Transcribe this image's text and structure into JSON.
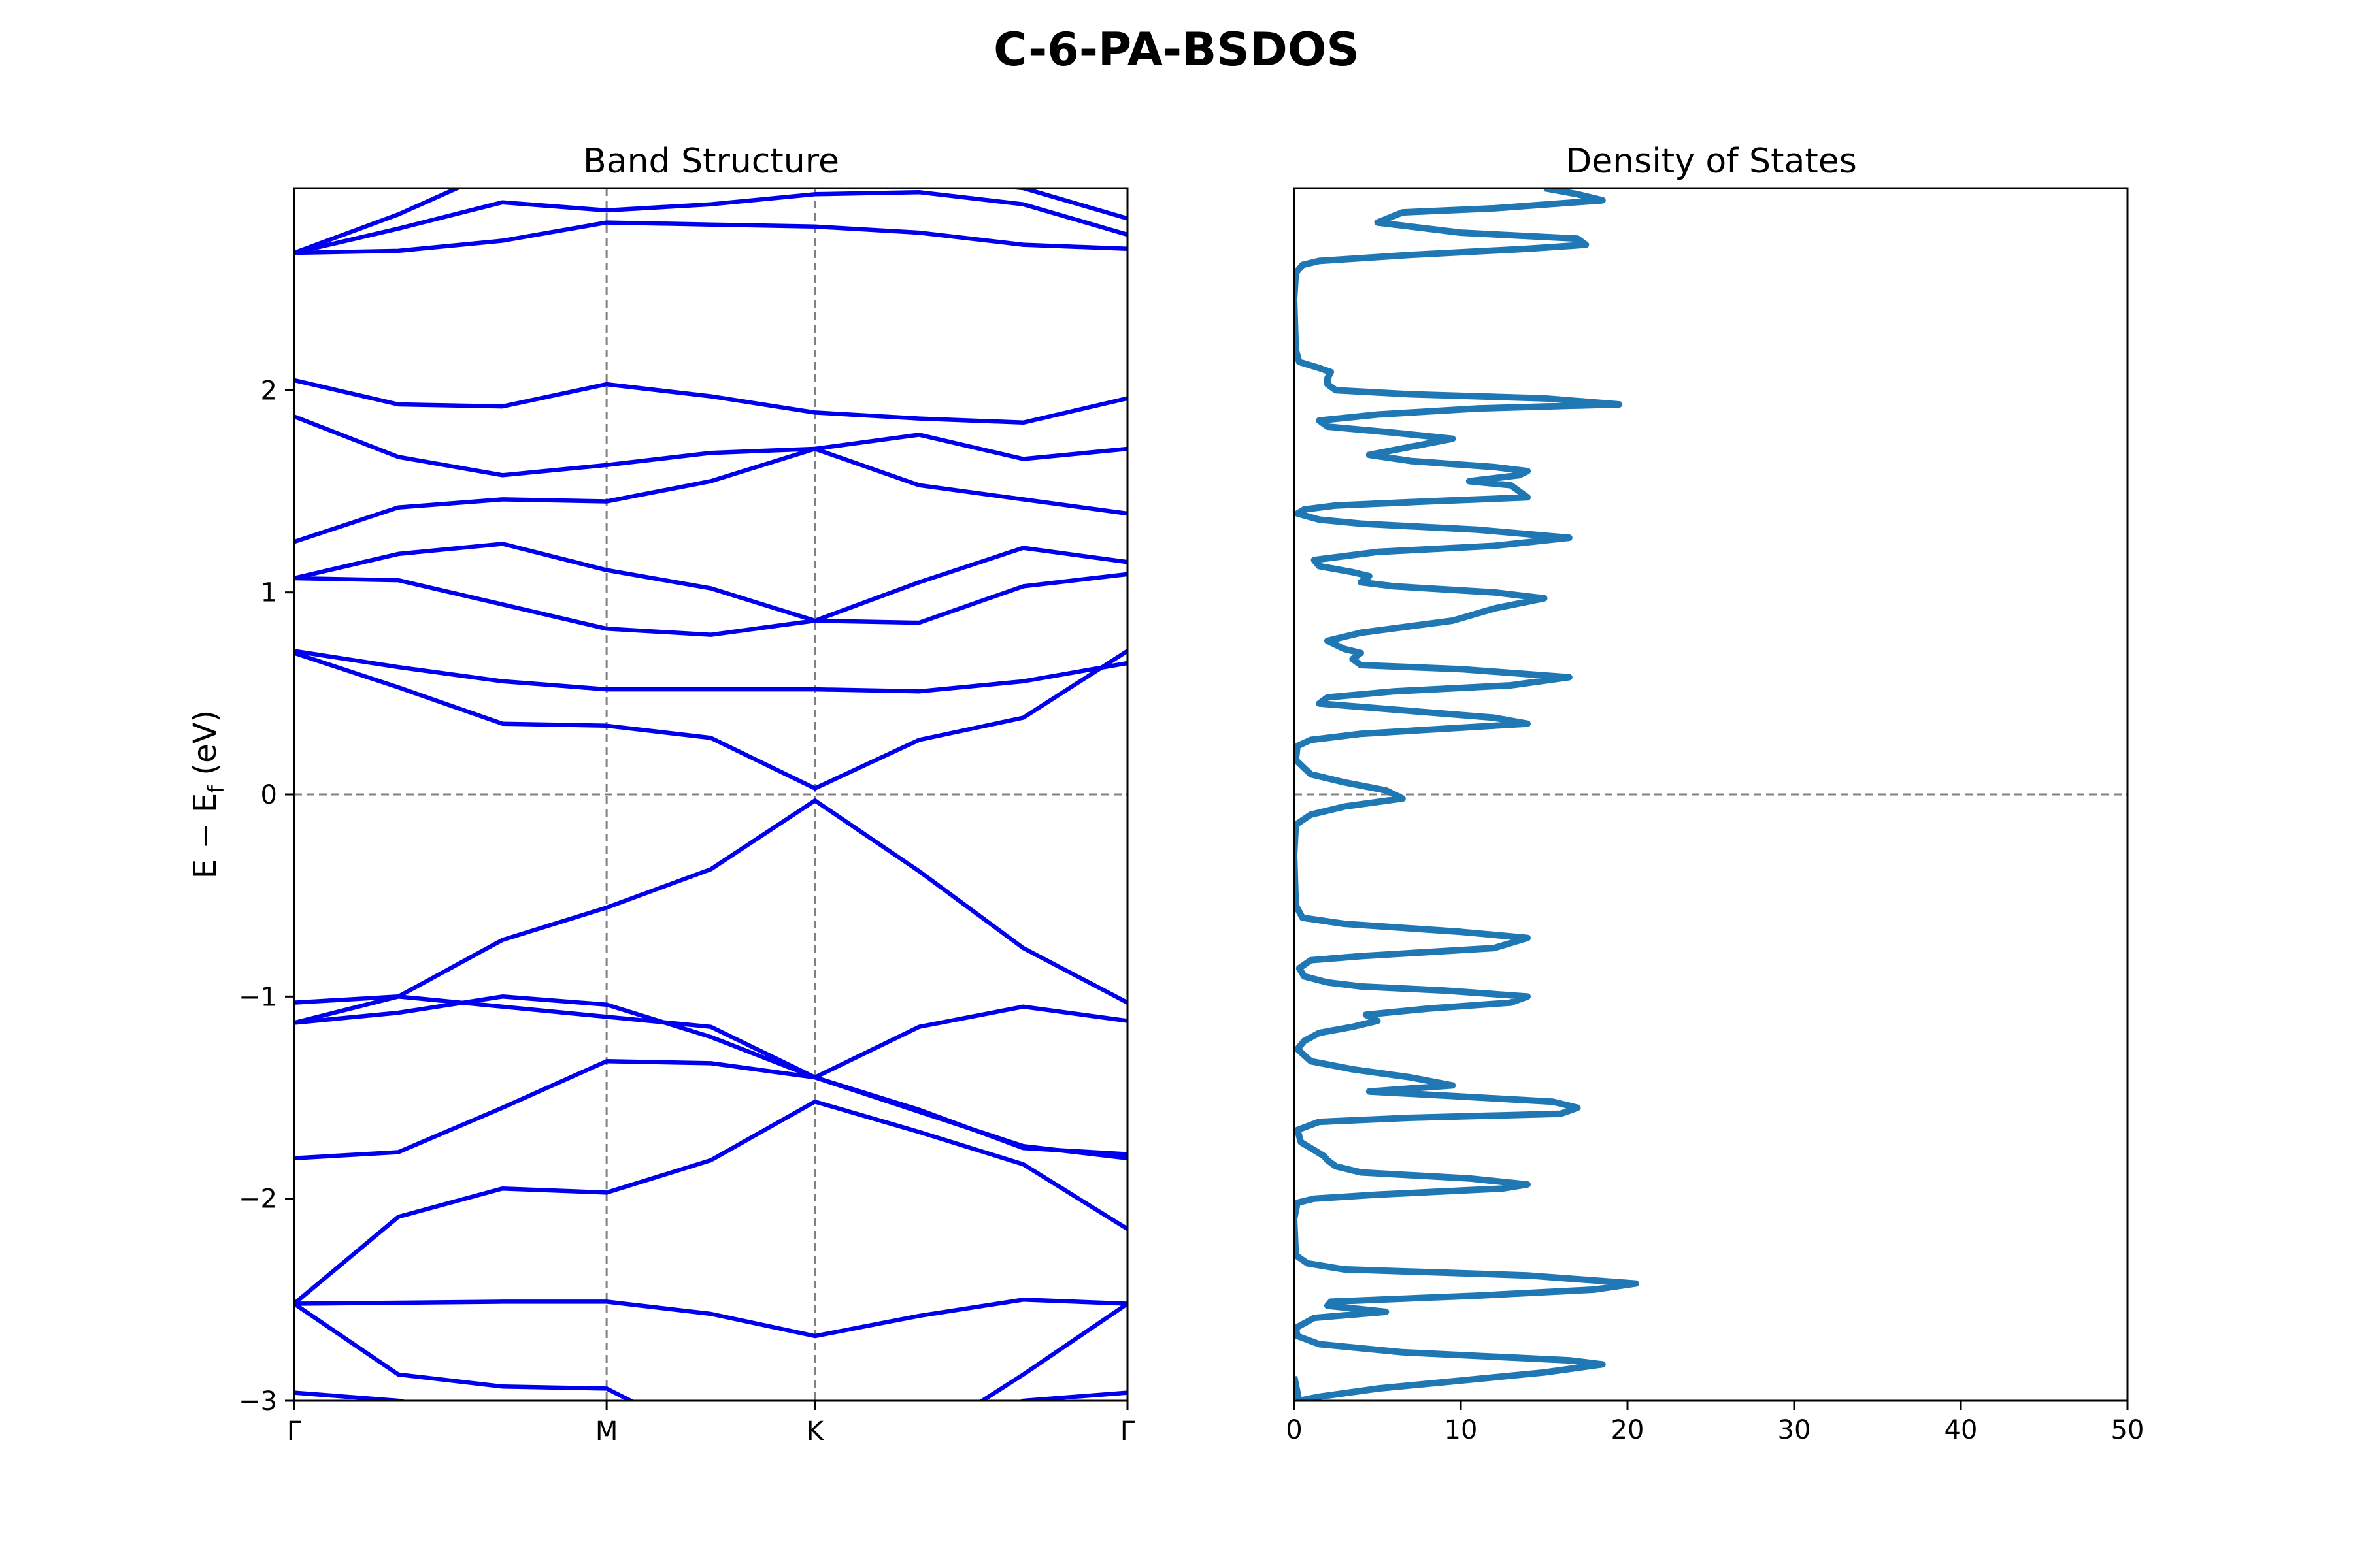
{
  "figure": {
    "title": "C-6-PA-BSDOS"
  },
  "chart_data": [
    {
      "type": "line",
      "title": "Band Structure",
      "xlabel": "",
      "ylabel": "E − E_f (eV)",
      "ylabel_parts": {
        "main": "E − E",
        "sub": "f",
        "unit": " (eV)"
      },
      "ylim": [
        -3,
        3
      ],
      "yticks": [
        -3,
        -2,
        -1,
        0,
        1,
        2
      ],
      "ytick_labels": [
        "−3",
        "−2",
        "−1",
        "0",
        "1",
        "2"
      ],
      "kpath_labels": [
        "Γ",
        "M",
        "K",
        "Γ"
      ],
      "kpath_positions": [
        0,
        3,
        5,
        8
      ],
      "fermi_level": 0,
      "line_color": "#0000ee",
      "guide_color": "#808080",
      "k": [
        0,
        1,
        2,
        3,
        4,
        5,
        6,
        7,
        8
      ],
      "series": [
        {
          "values": [
            -3.05,
            -3.25,
            -3.35,
            -3.3,
            -3.45,
            -3.6,
            -3.45,
            -3.2,
            -3.05
          ]
        },
        {
          "values": [
            -2.96,
            -3.0,
            -3.1,
            -3.2,
            -3.3,
            -3.4,
            -3.3,
            -3.0,
            -2.96
          ]
        },
        {
          "values": [
            -2.52,
            -2.87,
            -2.93,
            -2.94,
            -3.2,
            -3.3,
            -3.2,
            -2.87,
            -2.52
          ]
        },
        {
          "values": [
            -2.52,
            -2.515,
            -2.51,
            -2.51,
            -2.57,
            -2.68,
            -2.58,
            -2.5,
            -2.52
          ]
        },
        {
          "values": [
            -2.52,
            -2.09,
            -1.95,
            -1.97,
            -1.81,
            -1.52,
            -1.67,
            -1.83,
            -2.15
          ]
        },
        {
          "values": [
            -1.8,
            -1.77,
            -1.55,
            -1.32,
            -1.33,
            -1.4,
            -1.57,
            -1.74,
            -1.8
          ]
        },
        {
          "values": [
            -1.13,
            -1.08,
            -1.0,
            -1.04,
            -1.2,
            -1.4,
            -1.56,
            -1.75,
            -1.78
          ]
        },
        {
          "values": [
            -1.13,
            -1.0,
            -0.72,
            -0.56,
            -0.37,
            -0.03,
            -0.38,
            -0.76,
            -1.03
          ]
        },
        {
          "values": [
            -1.03,
            -1.0,
            -1.05,
            -1.1,
            -1.15,
            -1.4,
            -1.15,
            -1.05,
            -1.12
          ]
        },
        {
          "values": [
            0.7,
            0.53,
            0.35,
            0.34,
            0.28,
            0.03,
            0.27,
            0.38,
            0.71
          ]
        },
        {
          "values": [
            0.71,
            0.63,
            0.56,
            0.52,
            0.52,
            0.52,
            0.51,
            0.56,
            0.65
          ]
        },
        {
          "values": [
            1.07,
            1.06,
            0.94,
            0.82,
            0.79,
            0.86,
            0.85,
            1.03,
            1.09
          ]
        },
        {
          "values": [
            1.07,
            1.19,
            1.24,
            1.11,
            1.02,
            0.86,
            1.05,
            1.22,
            1.15
          ]
        },
        {
          "values": [
            1.25,
            1.42,
            1.46,
            1.45,
            1.55,
            1.71,
            1.53,
            1.46,
            1.39
          ]
        },
        {
          "values": [
            1.87,
            1.67,
            1.58,
            1.63,
            1.69,
            1.71,
            1.78,
            1.66,
            1.71
          ]
        },
        {
          "values": [
            2.05,
            1.93,
            1.92,
            2.03,
            1.97,
            1.89,
            1.86,
            1.84,
            1.96
          ]
        },
        {
          "values": [
            2.68,
            2.69,
            2.74,
            2.83,
            2.82,
            2.81,
            2.78,
            2.72,
            2.7
          ]
        },
        {
          "values": [
            2.68,
            2.8,
            2.93,
            2.89,
            2.92,
            2.97,
            2.98,
            2.92,
            2.77
          ]
        },
        {
          "values": [
            2.68,
            2.87,
            3.1,
            3.2,
            3.15,
            3.1,
            3.05,
            3.0,
            2.85
          ]
        }
      ]
    },
    {
      "type": "line",
      "title": "Density of States",
      "xlabel": "",
      "ylabel": "",
      "xlim": [
        0,
        50
      ],
      "xticks": [
        0,
        10,
        20,
        30,
        40,
        50
      ],
      "ylim": [
        -3,
        3
      ],
      "fermi_level": 0,
      "line_color": "#1f77b4",
      "guide_color": "#808080",
      "curve": [
        [
          0,
          -2.88
        ],
        [
          0.3,
          -3.0
        ],
        [
          1.5,
          -2.98
        ],
        [
          5,
          -2.94
        ],
        [
          10,
          -2.9
        ],
        [
          15,
          -2.86
        ],
        [
          18.5,
          -2.82
        ],
        [
          16.5,
          -2.8
        ],
        [
          6.5,
          -2.76
        ],
        [
          1.5,
          -2.72
        ],
        [
          0.2,
          -2.68
        ],
        [
          0.1,
          -2.64
        ],
        [
          1.2,
          -2.59
        ],
        [
          5.5,
          -2.56
        ],
        [
          2,
          -2.53
        ],
        [
          2.2,
          -2.51
        ],
        [
          11,
          -2.48
        ],
        [
          18,
          -2.45
        ],
        [
          20.5,
          -2.42
        ],
        [
          14,
          -2.38
        ],
        [
          3,
          -2.35
        ],
        [
          0.8,
          -2.32
        ],
        [
          0.1,
          -2.28
        ],
        [
          0,
          -2.1
        ],
        [
          0.2,
          -2.02
        ],
        [
          1.2,
          -2.0
        ],
        [
          5,
          -1.98
        ],
        [
          12.5,
          -1.95
        ],
        [
          14,
          -1.93
        ],
        [
          10.5,
          -1.9
        ],
        [
          4,
          -1.87
        ],
        [
          2.5,
          -1.84
        ],
        [
          2,
          -1.81
        ],
        [
          1.8,
          -1.79
        ],
        [
          1.2,
          -1.76
        ],
        [
          0.4,
          -1.72
        ],
        [
          0.2,
          -1.66
        ],
        [
          1.5,
          -1.62
        ],
        [
          7,
          -1.6
        ],
        [
          16,
          -1.58
        ],
        [
          17,
          -1.55
        ],
        [
          15.5,
          -1.52
        ],
        [
          9,
          -1.49
        ],
        [
          4.5,
          -1.47
        ],
        [
          9.5,
          -1.44
        ],
        [
          7,
          -1.4
        ],
        [
          3.5,
          -1.36
        ],
        [
          1,
          -1.32
        ],
        [
          0.2,
          -1.26
        ],
        [
          0.6,
          -1.22
        ],
        [
          1.5,
          -1.18
        ],
        [
          3.5,
          -1.15
        ],
        [
          5,
          -1.12
        ],
        [
          4.3,
          -1.09
        ],
        [
          8,
          -1.06
        ],
        [
          13,
          -1.03
        ],
        [
          14,
          -1.0
        ],
        [
          9,
          -0.97
        ],
        [
          4,
          -0.95
        ],
        [
          2,
          -0.93
        ],
        [
          0.6,
          -0.9
        ],
        [
          0.3,
          -0.86
        ],
        [
          1,
          -0.82
        ],
        [
          4,
          -0.8
        ],
        [
          12,
          -0.76
        ],
        [
          14,
          -0.71
        ],
        [
          10,
          -0.68
        ],
        [
          3,
          -0.64
        ],
        [
          0.5,
          -0.61
        ],
        [
          0.1,
          -0.55
        ],
        [
          0,
          -0.3
        ],
        [
          0.1,
          -0.15
        ],
        [
          1,
          -0.1
        ],
        [
          3,
          -0.06
        ],
        [
          6.5,
          -0.02
        ],
        [
          5.5,
          0.02
        ],
        [
          3,
          0.06
        ],
        [
          1,
          0.1
        ],
        [
          0.1,
          0.17
        ],
        [
          0.2,
          0.24
        ],
        [
          1,
          0.27
        ],
        [
          4,
          0.3
        ],
        [
          10,
          0.33
        ],
        [
          14,
          0.35
        ],
        [
          12,
          0.38
        ],
        [
          6,
          0.42
        ],
        [
          1.5,
          0.45
        ],
        [
          2,
          0.48
        ],
        [
          6,
          0.51
        ],
        [
          13,
          0.54
        ],
        [
          16.5,
          0.58
        ],
        [
          10,
          0.62
        ],
        [
          4,
          0.64
        ],
        [
          3.5,
          0.67
        ],
        [
          4,
          0.7
        ],
        [
          3,
          0.72
        ],
        [
          2,
          0.76
        ],
        [
          4,
          0.8
        ],
        [
          9.5,
          0.86
        ],
        [
          12,
          0.92
        ],
        [
          15,
          0.97
        ],
        [
          12,
          1.0
        ],
        [
          6,
          1.03
        ],
        [
          4,
          1.05
        ],
        [
          4.5,
          1.08
        ],
        [
          3.5,
          1.1
        ],
        [
          1.5,
          1.13
        ],
        [
          1.2,
          1.16
        ],
        [
          5,
          1.2
        ],
        [
          12,
          1.23
        ],
        [
          16.5,
          1.27
        ],
        [
          11,
          1.31
        ],
        [
          4,
          1.34
        ],
        [
          1.5,
          1.36
        ],
        [
          0.2,
          1.39
        ],
        [
          0.6,
          1.41
        ],
        [
          2.5,
          1.43
        ],
        [
          8,
          1.45
        ],
        [
          14,
          1.47
        ],
        [
          13,
          1.53
        ],
        [
          10.5,
          1.55
        ],
        [
          13.5,
          1.58
        ],
        [
          14,
          1.6
        ],
        [
          12,
          1.62
        ],
        [
          7,
          1.65
        ],
        [
          4.5,
          1.68
        ],
        [
          7,
          1.72
        ],
        [
          9.5,
          1.76
        ],
        [
          6,
          1.79
        ],
        [
          2,
          1.82
        ],
        [
          1.5,
          1.85
        ],
        [
          5,
          1.88
        ],
        [
          11,
          1.91
        ],
        [
          19.5,
          1.93
        ],
        [
          15,
          1.96
        ],
        [
          7,
          1.98
        ],
        [
          2.5,
          2.0
        ],
        [
          2,
          2.03
        ],
        [
          2,
          2.06
        ],
        [
          2.2,
          2.09
        ],
        [
          1.5,
          2.11
        ],
        [
          0.3,
          2.14
        ],
        [
          0.1,
          2.2
        ],
        [
          0,
          2.45
        ],
        [
          0.1,
          2.58
        ],
        [
          0.5,
          2.62
        ],
        [
          1.5,
          2.64
        ],
        [
          7,
          2.67
        ],
        [
          14,
          2.7
        ],
        [
          17.5,
          2.72
        ],
        [
          17,
          2.75
        ],
        [
          10,
          2.78
        ],
        [
          5,
          2.83
        ],
        [
          6.5,
          2.88
        ],
        [
          12,
          2.9
        ],
        [
          18.5,
          2.94
        ],
        [
          17,
          2.97
        ],
        [
          15,
          3.0
        ]
      ]
    }
  ]
}
